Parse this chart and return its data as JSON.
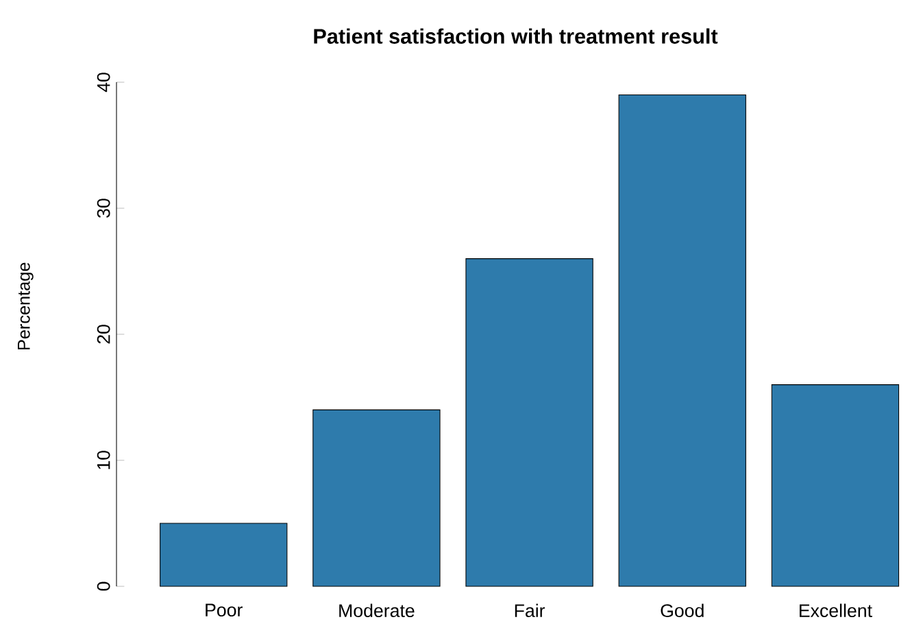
{
  "chart_data": {
    "type": "bar",
    "title": "Patient satisfaction with treatment result",
    "ylabel": "Percentage",
    "categories": [
      "Poor",
      "Moderate",
      "Fair",
      "Good",
      "Excellent"
    ],
    "values": [
      5,
      14,
      26,
      39,
      16
    ],
    "color": "#2e7bac",
    "ylim": [
      0,
      40
    ],
    "yticks": [
      0,
      10,
      20,
      30,
      40
    ],
    "grid": false
  }
}
